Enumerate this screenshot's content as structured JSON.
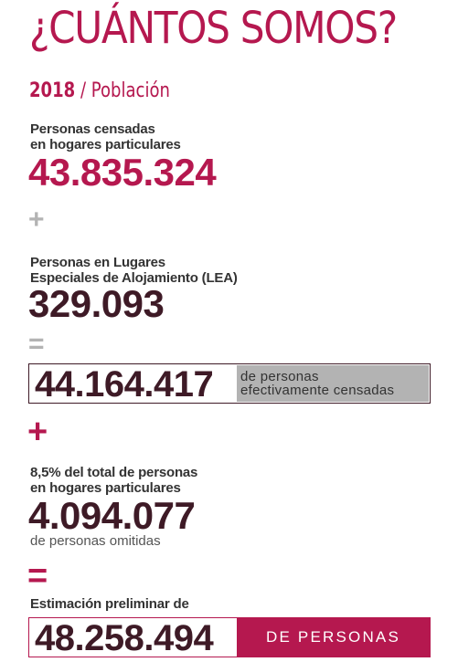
{
  "title": "¿CUÁNTOS SOMOS?",
  "subtitle": {
    "year": "2018",
    "text": " / Población"
  },
  "block1": {
    "label": "Personas censadas\nen hogares particulares",
    "value": "43.835.324"
  },
  "op_plus_1": "+",
  "block2": {
    "label": "Personas en Lugares\nEspeciales de Alojamiento (LEA)",
    "value": "329.093"
  },
  "op_equals_1": "=",
  "total_censadas": {
    "value": "44.164.417",
    "note": "de personas\nefectivamente censadas"
  },
  "op_plus_2": "+",
  "block3": {
    "label": "8,5% del total de personas\nen hogares particulares",
    "value": "4.094.077",
    "note": "de personas omitidas"
  },
  "op_equals_2": "=",
  "estimate": {
    "label": "Estimación preliminar de",
    "value": "48.258.494",
    "tag": "DE PERSONAS"
  },
  "colors": {
    "accent": "#b5184f",
    "dark": "#3e1a26",
    "gray": "#b3b3b3"
  }
}
